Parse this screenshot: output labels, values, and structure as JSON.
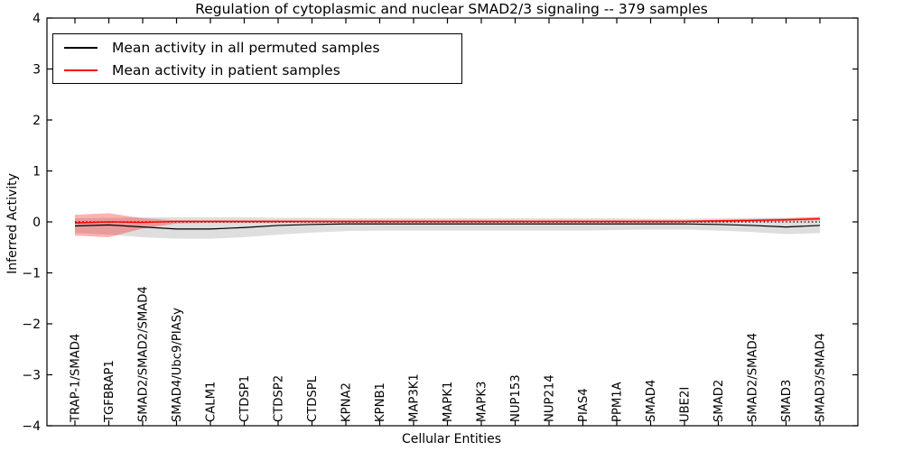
{
  "figure": {
    "title": "Regulation of cytoplasmic and nuclear SMAD2/3 signaling -- 379 samples"
  },
  "chart_data": {
    "type": "line",
    "title": "Regulation of cytoplasmic and nuclear SMAD2/3 signaling -- 379 samples",
    "xlabel": "Cellular Entities",
    "ylabel": "Inferred Activity",
    "ylim": [
      -4,
      4
    ],
    "yticks": [
      4,
      3,
      2,
      1,
      0,
      -1,
      -2,
      -3,
      -4
    ],
    "grid": false,
    "legend_position": "upper-left",
    "categories": [
      "TRAP-1/SMAD4",
      "TGFBRAP1",
      "SMAD2/SMAD2/SMAD4",
      "SMAD4/Ubc9/PIASy",
      "CALM1",
      "CTDSP1",
      "CTDSP2",
      "CTDSPL",
      "KPNA2",
      "KPNB1",
      "MAP3K1",
      "MAPK1",
      "MAPK3",
      "NUP153",
      "NUP214",
      "PIAS4",
      "PPM1A",
      "SMAD4",
      "UBE2I",
      "SMAD2",
      "SMAD2/SMAD4",
      "SMAD3",
      "SMAD3/SMAD4"
    ],
    "series": [
      {
        "name": "Mean activity in all permuted samples",
        "color": "#000000",
        "style": "solid",
        "values": [
          -0.08,
          -0.06,
          -0.1,
          -0.14,
          -0.14,
          -0.11,
          -0.07,
          -0.05,
          -0.04,
          -0.04,
          -0.04,
          -0.04,
          -0.04,
          -0.04,
          -0.04,
          -0.04,
          -0.04,
          -0.04,
          -0.04,
          -0.05,
          -0.07,
          -0.1,
          -0.07
        ]
      },
      {
        "name": "Mean activity in patient samples",
        "color": "#ff0000",
        "style": "solid",
        "values": [
          -0.02,
          0.0,
          -0.01,
          0.01,
          0.01,
          0.01,
          0.01,
          0.01,
          0.01,
          0.01,
          0.01,
          0.01,
          0.01,
          0.01,
          0.01,
          0.01,
          0.01,
          0.01,
          0.01,
          0.02,
          0.03,
          0.04,
          0.06
        ]
      }
    ],
    "bands": [
      {
        "name": "permuted-std-band",
        "color": "rgba(0,0,0,0.13)",
        "hi": [
          0.07,
          0.08,
          0.09,
          0.09,
          0.09,
          0.09,
          0.08,
          0.08,
          0.07,
          0.07,
          0.07,
          0.07,
          0.07,
          0.07,
          0.07,
          0.07,
          0.07,
          0.06,
          0.06,
          0.07,
          0.08,
          0.08,
          0.09
        ],
        "lo": [
          -0.22,
          -0.25,
          -0.3,
          -0.33,
          -0.33,
          -0.3,
          -0.25,
          -0.21,
          -0.18,
          -0.17,
          -0.17,
          -0.17,
          -0.17,
          -0.17,
          -0.17,
          -0.17,
          -0.16,
          -0.15,
          -0.15,
          -0.17,
          -0.2,
          -0.24,
          -0.22
        ]
      },
      {
        "name": "patient-std-band",
        "color": "rgba(255,0,0,0.30)",
        "hi": [
          0.14,
          0.17,
          0.07,
          0.03,
          0.03,
          0.03,
          0.03,
          0.03,
          0.03,
          0.03,
          0.03,
          0.03,
          0.03,
          0.03,
          0.03,
          0.03,
          0.03,
          0.03,
          0.03,
          0.04,
          0.05,
          0.07,
          0.1
        ],
        "lo": [
          -0.27,
          -0.3,
          -0.13,
          -0.03,
          -0.02,
          -0.02,
          -0.02,
          -0.02,
          -0.02,
          -0.02,
          -0.02,
          -0.02,
          -0.02,
          -0.02,
          -0.02,
          -0.02,
          -0.02,
          -0.02,
          -0.02,
          -0.01,
          0.0,
          0.02,
          0.03
        ]
      }
    ],
    "reference_line": {
      "y": 0,
      "style": "dotted",
      "color": "#000000"
    }
  },
  "colors": {
    "frame": "#000000",
    "background": "#ffffff",
    "permuted_line": "#000000",
    "patient_line": "#ff0000"
  }
}
